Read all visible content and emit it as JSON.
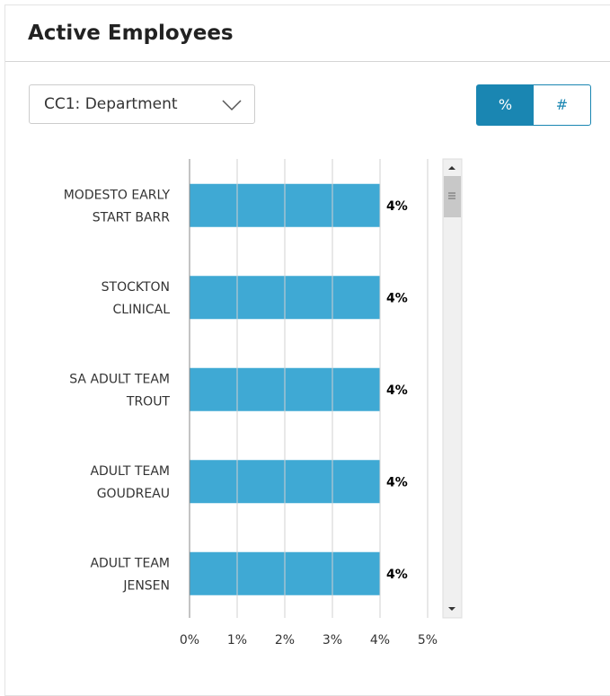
{
  "header": {
    "title": "Active Employees"
  },
  "dropdown": {
    "label": "CC1: Department"
  },
  "toggle": {
    "options": [
      "%",
      "#"
    ],
    "selected": "%"
  },
  "chart_data": {
    "type": "bar",
    "orientation": "horizontal",
    "categories": [
      "MODESTO EARLY START BARR",
      "STOCKTON CLINICAL",
      "SA ADULT TEAM TROUT",
      "ADULT TEAM GOUDREAU",
      "ADULT TEAM JENSEN"
    ],
    "values": [
      4,
      4,
      4,
      4,
      4
    ],
    "value_labels": [
      "4%",
      "4%",
      "4%",
      "4%",
      "4%"
    ],
    "color": "#3fa9d4",
    "xlim": [
      0,
      5
    ],
    "xticks": [
      {
        "value": 0,
        "label": "0%"
      },
      {
        "value": 1,
        "label": "1%"
      },
      {
        "value": 2,
        "label": "2%"
      },
      {
        "value": 3,
        "label": "3%"
      },
      {
        "value": 4,
        "label": "4%"
      },
      {
        "value": 5,
        "label": "5%"
      }
    ],
    "grid": true
  }
}
